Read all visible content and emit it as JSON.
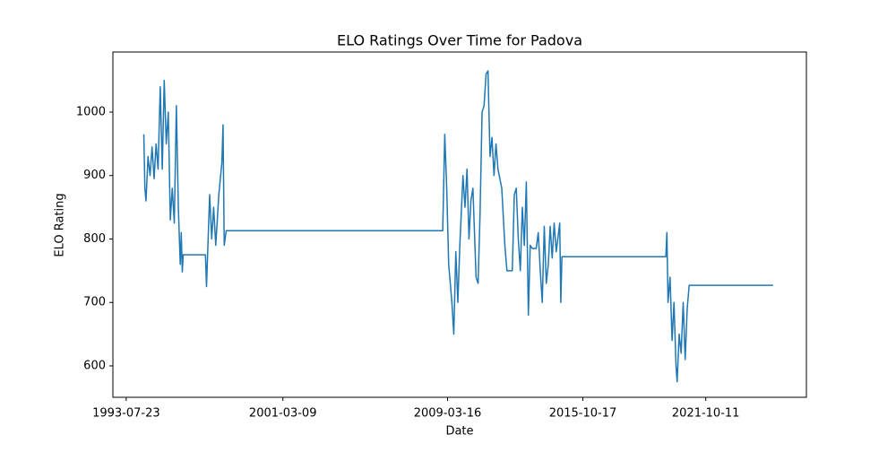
{
  "chart_data": {
    "type": "line",
    "title": "ELO Ratings Over Time for Padova",
    "xlabel": "Date",
    "ylabel": "ELO Rating",
    "color": "#1f77b4",
    "x": [
      "1994-06-01",
      "1994-06-20",
      "1994-07-10",
      "1994-08-15",
      "1994-09-20",
      "1994-10-25",
      "1994-12-01",
      "1995-01-05",
      "1995-02-10",
      "1995-03-20",
      "1995-04-25",
      "1995-05-30",
      "1995-07-05",
      "1995-08-10",
      "1995-09-15",
      "1995-10-20",
      "1995-11-25",
      "1996-01-01",
      "1996-02-05",
      "1996-03-10",
      "1996-03-28",
      "1996-04-15",
      "1996-05-01",
      "1997-06-01",
      "1997-06-20",
      "1997-08-15",
      "1997-09-20",
      "1997-10-25",
      "1997-12-01",
      "1998-01-25",
      "1998-03-20",
      "1998-04-10",
      "1998-05-01",
      "1998-06-05",
      "2008-12-20",
      "2009-01-25",
      "2009-03-01",
      "2009-04-05",
      "2009-06-01",
      "2009-07-05",
      "2009-08-10",
      "2009-09-15",
      "2009-10-20",
      "2009-12-15",
      "2010-01-20",
      "2010-02-25",
      "2010-04-01",
      "2010-05-05",
      "2010-06-10",
      "2010-08-05",
      "2010-09-10",
      "2010-10-15",
      "2010-11-20",
      "2010-12-25",
      "2011-01-30",
      "2011-03-05",
      "2011-04-10",
      "2011-05-15",
      "2011-06-20",
      "2011-07-25",
      "2011-08-30",
      "2011-11-05",
      "2011-12-30",
      "2012-02-05",
      "2012-05-10",
      "2012-06-15",
      "2012-07-20",
      "2012-08-25",
      "2012-09-30",
      "2012-11-05",
      "2012-12-10",
      "2013-01-15",
      "2013-02-20",
      "2013-03-25",
      "2013-04-30",
      "2013-07-10",
      "2013-08-15",
      "2013-09-20",
      "2013-10-25",
      "2013-11-30",
      "2014-01-05",
      "2014-02-10",
      "2014-03-15",
      "2014-04-20",
      "2014-05-25",
      "2014-07-01",
      "2014-09-01",
      "2014-09-20",
      "2014-10-10",
      "2019-11-01",
      "2019-11-20",
      "2019-12-10",
      "2020-01-15",
      "2020-02-20",
      "2020-03-25",
      "2020-04-30",
      "2020-05-20",
      "2020-06-25",
      "2020-07-30",
      "2020-09-05",
      "2020-10-10",
      "2020-11-15",
      "2020-12-20",
      "2025-01-20"
    ],
    "values": [
      965,
      880,
      860,
      930,
      900,
      945,
      895,
      950,
      910,
      1040,
      910,
      1050,
      950,
      1000,
      830,
      880,
      825,
      1010,
      850,
      760,
      810,
      748,
      775,
      775,
      725,
      870,
      800,
      850,
      790,
      870,
      920,
      980,
      790,
      813,
      813,
      965,
      880,
      760,
      700,
      650,
      780,
      700,
      790,
      900,
      850,
      910,
      800,
      860,
      880,
      740,
      730,
      840,
      1000,
      1010,
      1060,
      1065,
      930,
      960,
      900,
      950,
      910,
      880,
      790,
      750,
      750,
      870,
      880,
      800,
      750,
      850,
      790,
      890,
      680,
      790,
      785,
      785,
      810,
      750,
      700,
      820,
      730,
      760,
      820,
      770,
      825,
      780,
      825,
      700,
      772,
      772,
      810,
      700,
      740,
      640,
      700,
      600,
      575,
      650,
      620,
      700,
      610,
      690,
      727,
      727
    ],
    "xlim": [
      "1992-11-28",
      "2026-09-05"
    ],
    "xticks": [
      "1993-07-23",
      "2001-03-09",
      "2009-03-16",
      "2015-10-17",
      "2021-10-11"
    ],
    "ylim": [
      550.5,
      1094.7
    ],
    "yticks": [
      600,
      700,
      800,
      900,
      1000
    ],
    "grid": false
  }
}
